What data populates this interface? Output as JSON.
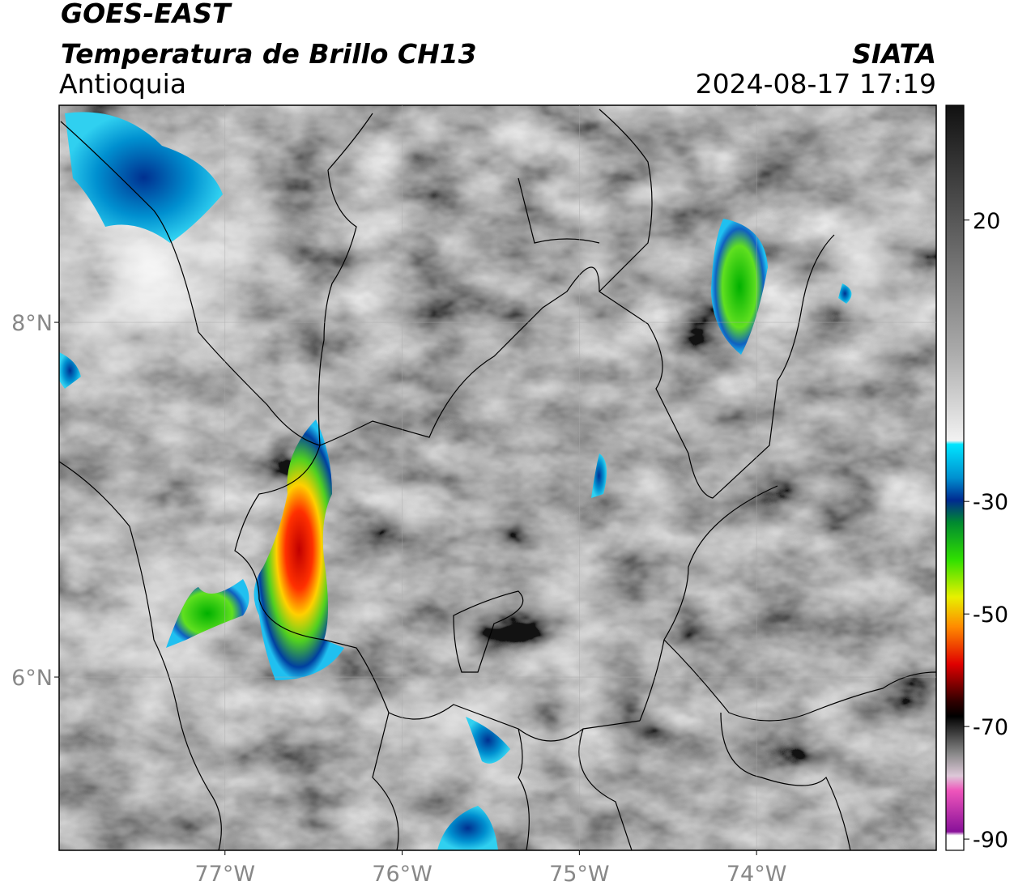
{
  "header": {
    "title": "GOES-EAST",
    "subtitle": "Temperatura de Brillo CH13",
    "region": "Antioquia",
    "source": "SIATA",
    "datetime": "2024-08-17 17:19"
  },
  "map": {
    "latlim": [
      5.023,
      9.224
    ],
    "lonlim": [
      -77.936,
      -72.986
    ],
    "latticks": [
      {
        "value": 8,
        "label": "8°N"
      },
      {
        "value": 6,
        "label": "6°N"
      }
    ],
    "lonticks": [
      {
        "value": -77,
        "label": "77°W"
      },
      {
        "value": -76,
        "label": "76°W"
      },
      {
        "value": -75,
        "label": "75°W"
      },
      {
        "value": -74,
        "label": "74°W"
      }
    ],
    "grid": true
  },
  "colorbar": {
    "lim": [
      -92,
      40.4
    ],
    "ticks": [
      20,
      -30,
      -50,
      -70,
      -90
    ]
  }
}
